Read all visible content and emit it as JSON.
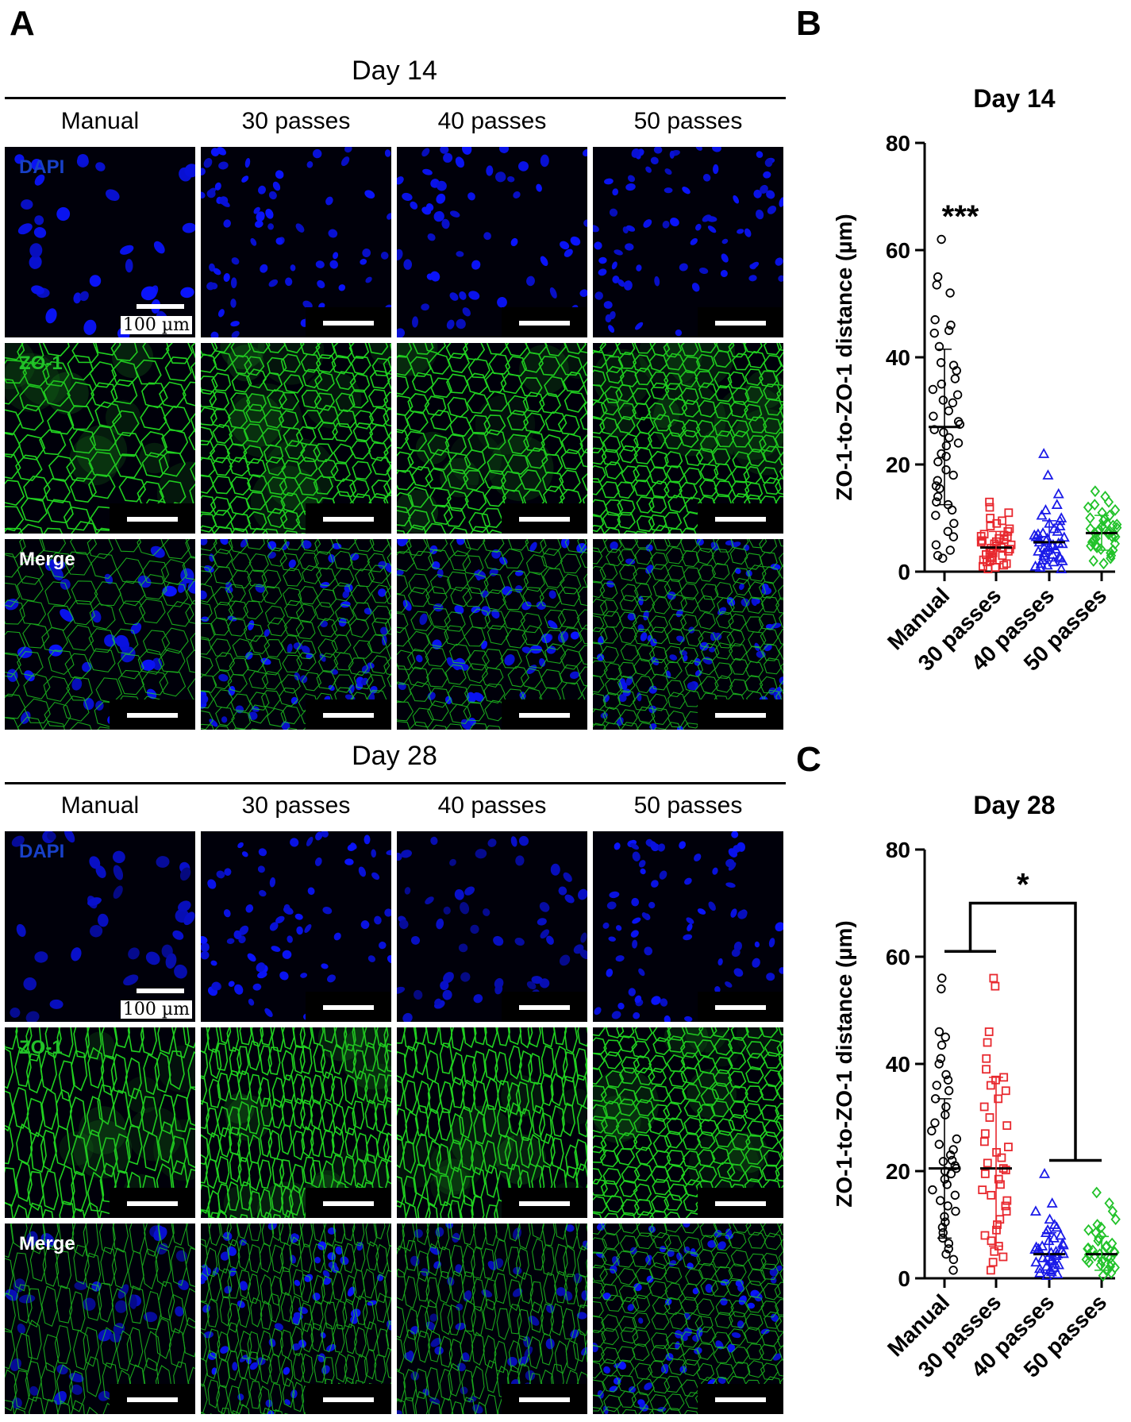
{
  "panel_letters": {
    "a": "A",
    "b": "B",
    "c": "C"
  },
  "microscopy": {
    "columns": [
      "Manual",
      "30 passes",
      "40 passes",
      "50 passes"
    ],
    "channels": [
      "DAPI",
      "ZO-1",
      "Merge"
    ],
    "scale_label": "100 µm",
    "days": [
      {
        "title": "Day 14"
      },
      {
        "title": "Day 28"
      }
    ],
    "colors": {
      "dapi": "#1010ee",
      "zo1": "#22dd22",
      "dapi_label": "#1840c8",
      "zo1_label": "#22c22a",
      "merge_label": "#ffffff"
    }
  },
  "chart_data": [
    {
      "type": "scatter",
      "panel": "B",
      "title": "Day 14",
      "ylabel": "ZO-1-to-ZO-1 distance (µm)",
      "ylim": [
        0,
        80
      ],
      "yticks": [
        "0",
        "20",
        "40",
        "60",
        "80"
      ],
      "categories": [
        "Manual",
        "30 passes",
        "40 passes",
        "50 passes"
      ],
      "series": [
        {
          "color": "#000000",
          "marker": "circle",
          "mean": 27,
          "sd_upper": 41.5,
          "sd_lower": 12.5,
          "values": [
            62.0,
            55.0,
            53.5,
            52.0,
            47.0,
            46.0,
            45.0,
            44.5,
            42.0,
            39.0,
            38.5,
            37.5,
            36.0,
            35.0,
            34.0,
            33.0,
            32.0,
            31.5,
            30.0,
            29.0,
            28.0,
            27.5,
            26.5,
            26.0,
            25.0,
            24.0,
            23.5,
            22.0,
            21.5,
            20.5,
            19.0,
            18.0,
            17.0,
            16.0,
            15.5,
            14.0,
            13.0,
            12.5,
            11.5,
            10.5,
            9.0,
            7.5,
            6.5,
            5.0,
            4.0,
            3.0,
            2.5
          ]
        },
        {
          "color": "#e8282e",
          "marker": "square",
          "mean": 4.5,
          "sd_upper": 7.5,
          "sd_lower": 1.5,
          "values": [
            13.0,
            12.0,
            11.0,
            10.0,
            9.5,
            9.0,
            8.5,
            8.0,
            7.5,
            7.0,
            6.8,
            6.5,
            6.2,
            6.0,
            5.8,
            5.5,
            5.2,
            5.0,
            4.8,
            4.5,
            4.2,
            4.0,
            3.8,
            3.5,
            3.2,
            3.0,
            2.8,
            2.5,
            2.2,
            2.0,
            1.8,
            1.5,
            1.2,
            1.0,
            0.8,
            0.5,
            3.6,
            4.4,
            5.6,
            6.6
          ]
        },
        {
          "color": "#1a1ae8",
          "marker": "triangle",
          "mean": 5.5,
          "sd_upper": 9.5,
          "sd_lower": 2.0,
          "values": [
            22.0,
            18.0,
            14.5,
            12.5,
            11.5,
            10.5,
            10.0,
            9.5,
            9.0,
            8.5,
            8.0,
            7.5,
            7.2,
            7.0,
            6.8,
            6.5,
            6.2,
            6.0,
            5.8,
            5.5,
            5.2,
            5.0,
            4.8,
            4.5,
            4.2,
            4.0,
            3.8,
            3.5,
            3.2,
            3.0,
            2.8,
            2.5,
            2.2,
            2.0,
            1.8,
            1.5,
            1.2,
            1.0,
            0.8,
            0.5,
            6.4,
            5.3,
            4.6
          ]
        },
        {
          "color": "#22c22a",
          "marker": "diamond",
          "mean": 7.2,
          "sd_upper": 10.5,
          "sd_lower": 4.0,
          "values": [
            15.0,
            14.0,
            13.0,
            12.5,
            12.0,
            11.5,
            11.0,
            10.5,
            10.0,
            9.8,
            9.5,
            9.0,
            8.8,
            8.5,
            8.2,
            8.0,
            7.8,
            7.5,
            7.2,
            7.0,
            6.8,
            6.5,
            6.2,
            6.0,
            5.8,
            5.5,
            5.2,
            5.0,
            4.8,
            4.5,
            4.2,
            4.0,
            3.5,
            3.0,
            2.5,
            2.0,
            1.5,
            7.4,
            8.6,
            6.6
          ]
        }
      ],
      "annotations": [
        {
          "text": "***",
          "category": "Manual",
          "y": 67
        }
      ]
    },
    {
      "type": "scatter",
      "panel": "C",
      "title": "Day 28",
      "ylabel": "ZO-1-to-ZO-1 distance (µm)",
      "ylim": [
        0,
        80
      ],
      "yticks": [
        "0",
        "20",
        "40",
        "60",
        "80"
      ],
      "categories": [
        "Manual",
        "30 passes",
        "40 passes",
        "50 passes"
      ],
      "series": [
        {
          "color": "#000000",
          "marker": "circle",
          "mean": 20.5,
          "sd_upper": 33.5,
          "sd_lower": 7.5,
          "values": [
            56.0,
            54.0,
            46.0,
            45.0,
            43.5,
            41.0,
            40.0,
            38.0,
            37.0,
            36.0,
            35.0,
            33.5,
            32.0,
            30.5,
            29.0,
            27.5,
            26.0,
            25.0,
            24.0,
            23.0,
            22.0,
            21.0,
            20.5,
            19.5,
            18.5,
            17.5,
            16.5,
            15.5,
            14.5,
            13.5,
            12.5,
            11.5,
            10.5,
            9.5,
            8.5,
            7.5,
            6.5,
            5.5,
            4.5,
            3.5,
            1.5,
            20.0,
            21.8
          ]
        },
        {
          "color": "#e8282e",
          "marker": "square",
          "mean": 20.5,
          "sd_upper": 37.5,
          "sd_lower": 6.0,
          "values": [
            56.0,
            54.5,
            46.0,
            44.0,
            41.0,
            39.0,
            37.5,
            37.0,
            36.0,
            35.0,
            33.5,
            32.0,
            30.0,
            28.5,
            27.0,
            25.5,
            24.5,
            23.5,
            22.5,
            21.5,
            20.5,
            19.5,
            18.5,
            17.5,
            16.5,
            15.5,
            14.5,
            13.5,
            12.5,
            11.0,
            10.0,
            9.0,
            8.0,
            7.0,
            6.0,
            5.0,
            4.0,
            3.0,
            1.5,
            20.2
          ]
        },
        {
          "color": "#1a1ae8",
          "marker": "triangle",
          "mean": 4.5,
          "sd_upper": 8.5,
          "sd_lower": 1.0,
          "values": [
            19.5,
            14.0,
            12.5,
            11.0,
            10.0,
            9.5,
            9.0,
            8.5,
            8.0,
            7.5,
            7.0,
            6.5,
            6.2,
            6.0,
            5.8,
            5.5,
            5.2,
            5.0,
            4.8,
            4.5,
            4.2,
            4.0,
            3.8,
            3.5,
            3.2,
            3.0,
            2.8,
            2.5,
            2.2,
            2.0,
            1.8,
            1.5,
            1.2,
            1.0,
            0.8,
            0.5,
            4.6,
            5.4
          ]
        },
        {
          "color": "#22c22a",
          "marker": "diamond",
          "mean": 4.5,
          "sd_upper": 7.8,
          "sd_lower": 1.5,
          "values": [
            16.0,
            14.0,
            12.5,
            11.0,
            10.0,
            9.5,
            9.0,
            8.5,
            8.0,
            7.5,
            7.0,
            6.5,
            6.0,
            5.8,
            5.5,
            5.2,
            5.0,
            4.8,
            4.5,
            4.2,
            4.0,
            3.8,
            3.5,
            3.2,
            3.0,
            2.8,
            2.5,
            2.2,
            2.0,
            1.5,
            1.0,
            0.5,
            4.4,
            5.6
          ]
        }
      ],
      "comparison": {
        "text": "*",
        "group_a": [
          "Manual",
          "30 passes"
        ],
        "group_b": [
          "40 passes",
          "50 passes"
        ],
        "y_a": 61,
        "y_b": 22,
        "y_top": 70
      }
    }
  ]
}
